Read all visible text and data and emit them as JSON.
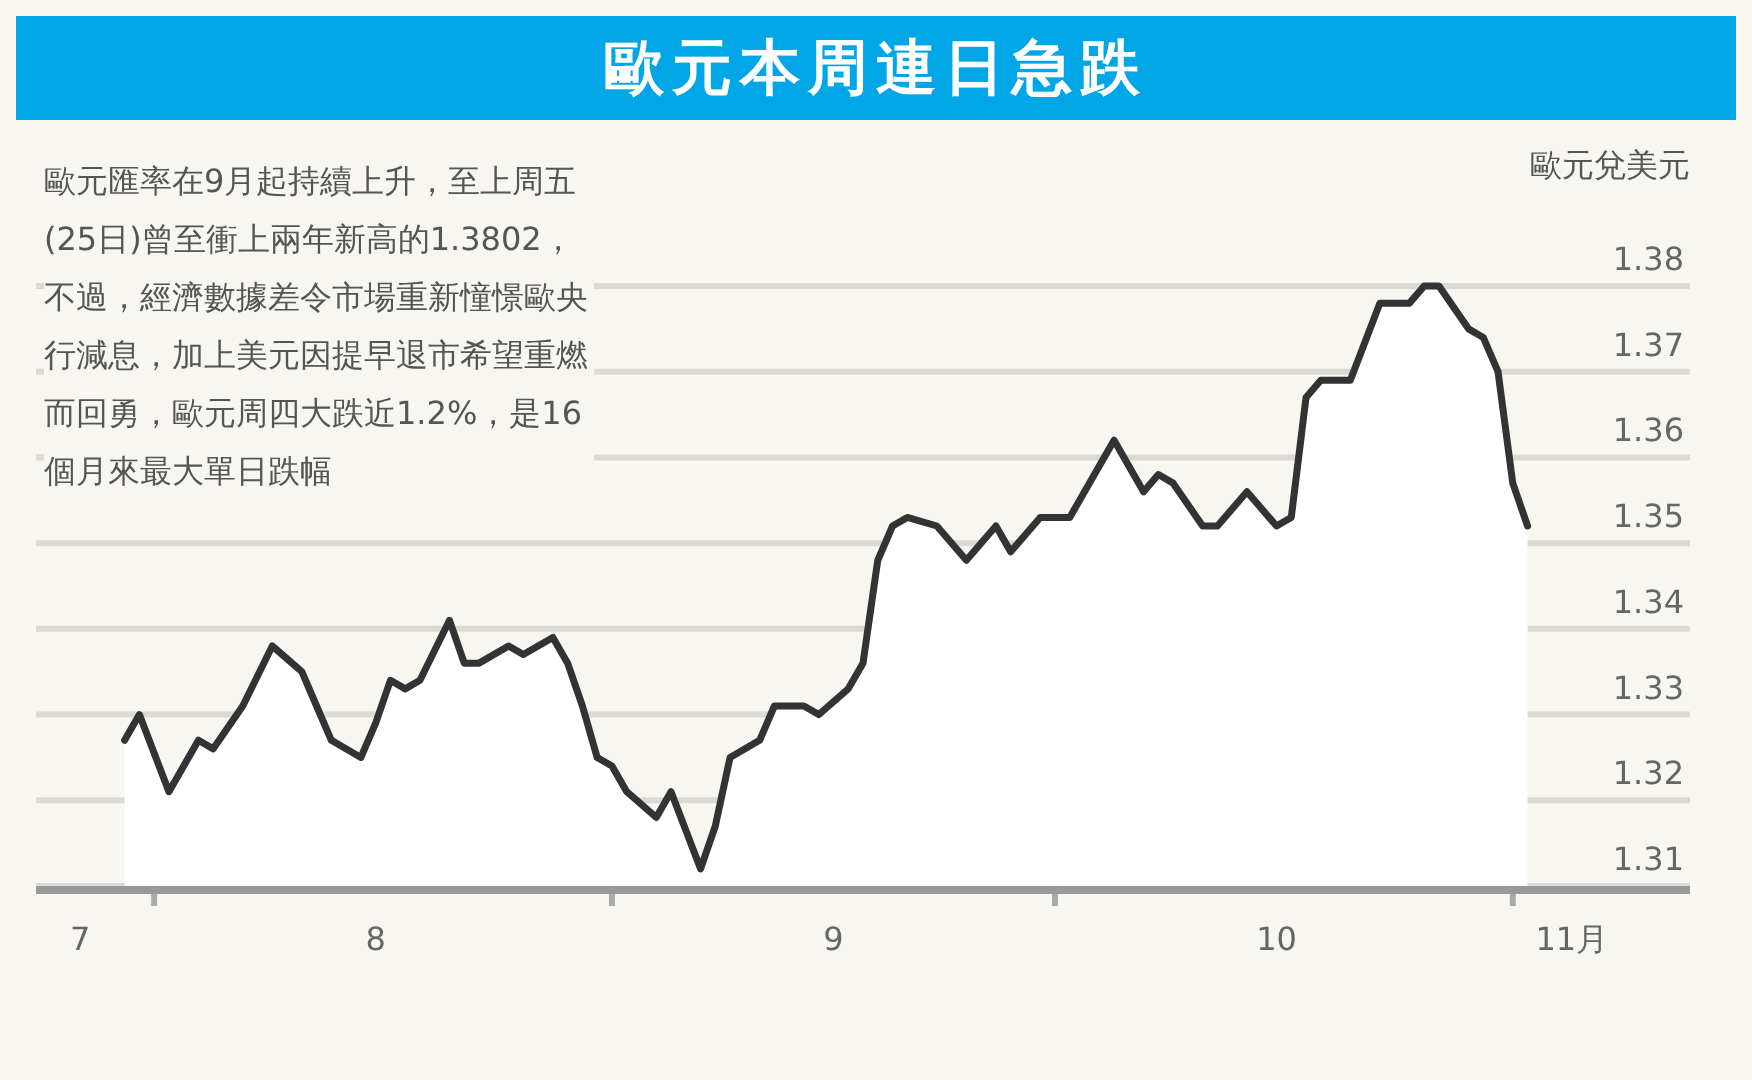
{
  "chart_data": {
    "type": "area",
    "title": "歐元本周連日急跌",
    "ylabel": "歐元兌美元",
    "annotations": [
      "歐元匯率在9月起持續上升，至上周五(25日)曾至衝上兩年新高的1.3802，不過，經濟數據差令市場重新憧憬歐央行減息，加上美元因提早退市希望重燃而回勇，歐元周四大跌近1.2%，是16個月來最大單日跌幅"
    ],
    "x": [
      "--07-30",
      "--07-31",
      "--08-02",
      "--08-04",
      "--08-05",
      "--08-07",
      "--08-09",
      "--08-11",
      "--08-12",
      "--08-13",
      "--08-15",
      "--08-16",
      "--08-17",
      "--08-18",
      "--08-19",
      "--08-21",
      "--08-22",
      "--08-23",
      "--08-25",
      "--08-26",
      "--08-28",
      "--08-29",
      "--08-30",
      "--08-31",
      "--09-01",
      "--09-02",
      "--09-04",
      "--09-05",
      "--09-07",
      "--09-08",
      "--09-09",
      "--09-11",
      "--09-12",
      "--09-14",
      "--09-15",
      "--09-17",
      "--09-18",
      "--09-19",
      "--09-20",
      "--09-21",
      "--09-23",
      "--09-25",
      "--09-27",
      "--09-28",
      "--09-30",
      "--10-02",
      "--10-05",
      "--10-07",
      "--10-08",
      "--10-09",
      "--10-11",
      "--10-12",
      "--10-14",
      "--10-16",
      "--10-17",
      "--10-18",
      "--10-19",
      "--10-21",
      "--10-23",
      "--10-25",
      "--10-26",
      "--10-27",
      "--10-29",
      "--10-30",
      "--10-31",
      "--11-01",
      "--11-02"
    ],
    "series": [
      {
        "color": "#333333",
        "values": [
          1.327,
          1.33,
          1.321,
          1.327,
          1.326,
          1.331,
          1.338,
          1.335,
          1.331,
          1.327,
          1.325,
          1.329,
          1.334,
          1.333,
          1.334,
          1.341,
          1.336,
          1.336,
          1.338,
          1.337,
          1.339,
          1.336,
          1.331,
          1.325,
          1.324,
          1.321,
          1.318,
          1.321,
          1.312,
          1.317,
          1.325,
          1.327,
          1.331,
          1.331,
          1.33,
          1.333,
          1.336,
          1.348,
          1.352,
          1.353,
          1.352,
          1.348,
          1.352,
          1.349,
          1.353,
          1.353,
          1.362,
          1.356,
          1.358,
          1.357,
          1.352,
          1.352,
          1.356,
          1.352,
          1.353,
          1.367,
          1.369,
          1.369,
          1.378,
          1.378,
          1.38,
          1.38,
          1.375,
          1.374,
          1.37,
          1.357,
          1.352
        ]
      }
    ],
    "xlim": [
      "--07-24",
      "--11-13"
    ],
    "xticks": [
      {
        "value": "--07-27",
        "label": "7"
      },
      {
        "value": "--08-01",
        "label": null
      },
      {
        "value": "--08-16",
        "label": "8"
      },
      {
        "value": "--09-01",
        "label": null
      },
      {
        "value": "--09-16",
        "label": "9"
      },
      {
        "value": "--10-01",
        "label": null
      },
      {
        "value": "--10-16",
        "label": "10"
      },
      {
        "value": "--11-01",
        "label": null
      },
      {
        "value": "--11-05",
        "label": "11月"
      }
    ],
    "ylim": [
      1.31,
      1.38
    ],
    "yticks": [
      1.31,
      1.32,
      1.33,
      1.34,
      1.35,
      1.36,
      1.37,
      1.38
    ],
    "grid": "y"
  }
}
